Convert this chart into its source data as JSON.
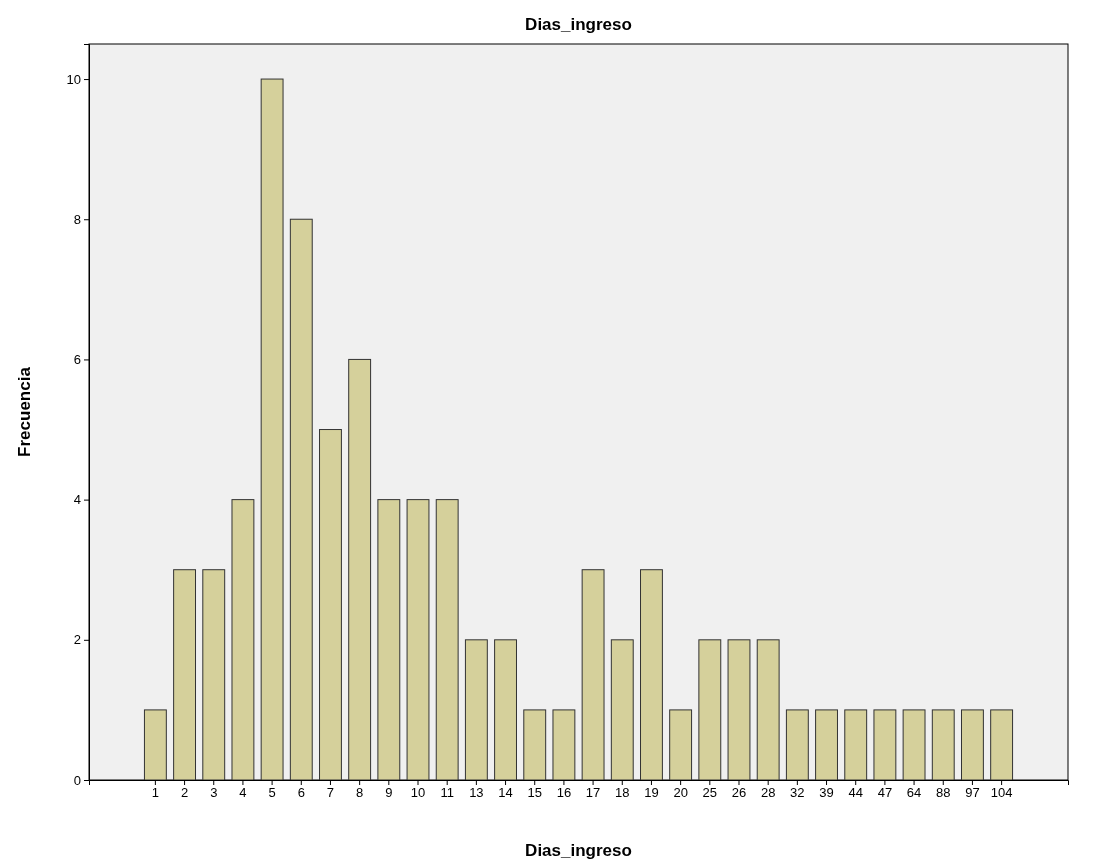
{
  "chart_data": {
    "type": "bar",
    "title": "Dias_ingreso",
    "xlabel": "Dias_ingreso",
    "ylabel": "Frecuencia",
    "categories": [
      "1",
      "2",
      "3",
      "4",
      "5",
      "6",
      "7",
      "8",
      "9",
      "10",
      "11",
      "13",
      "14",
      "15",
      "16",
      "17",
      "18",
      "19",
      "20",
      "25",
      "26",
      "28",
      "32",
      "39",
      "44",
      "47",
      "64",
      "88",
      "97",
      "104"
    ],
    "values": [
      1,
      3,
      3,
      4,
      10,
      8,
      5,
      6,
      4,
      4,
      4,
      2,
      2,
      1,
      1,
      3,
      2,
      3,
      1,
      2,
      2,
      2,
      1,
      1,
      1,
      1,
      1,
      1,
      1,
      1
    ],
    "color": "#d5d09b",
    "ylim": [
      0,
      10.5
    ],
    "yticks": [
      0,
      2,
      4,
      6,
      8,
      10
    ],
    "grid": false
  }
}
